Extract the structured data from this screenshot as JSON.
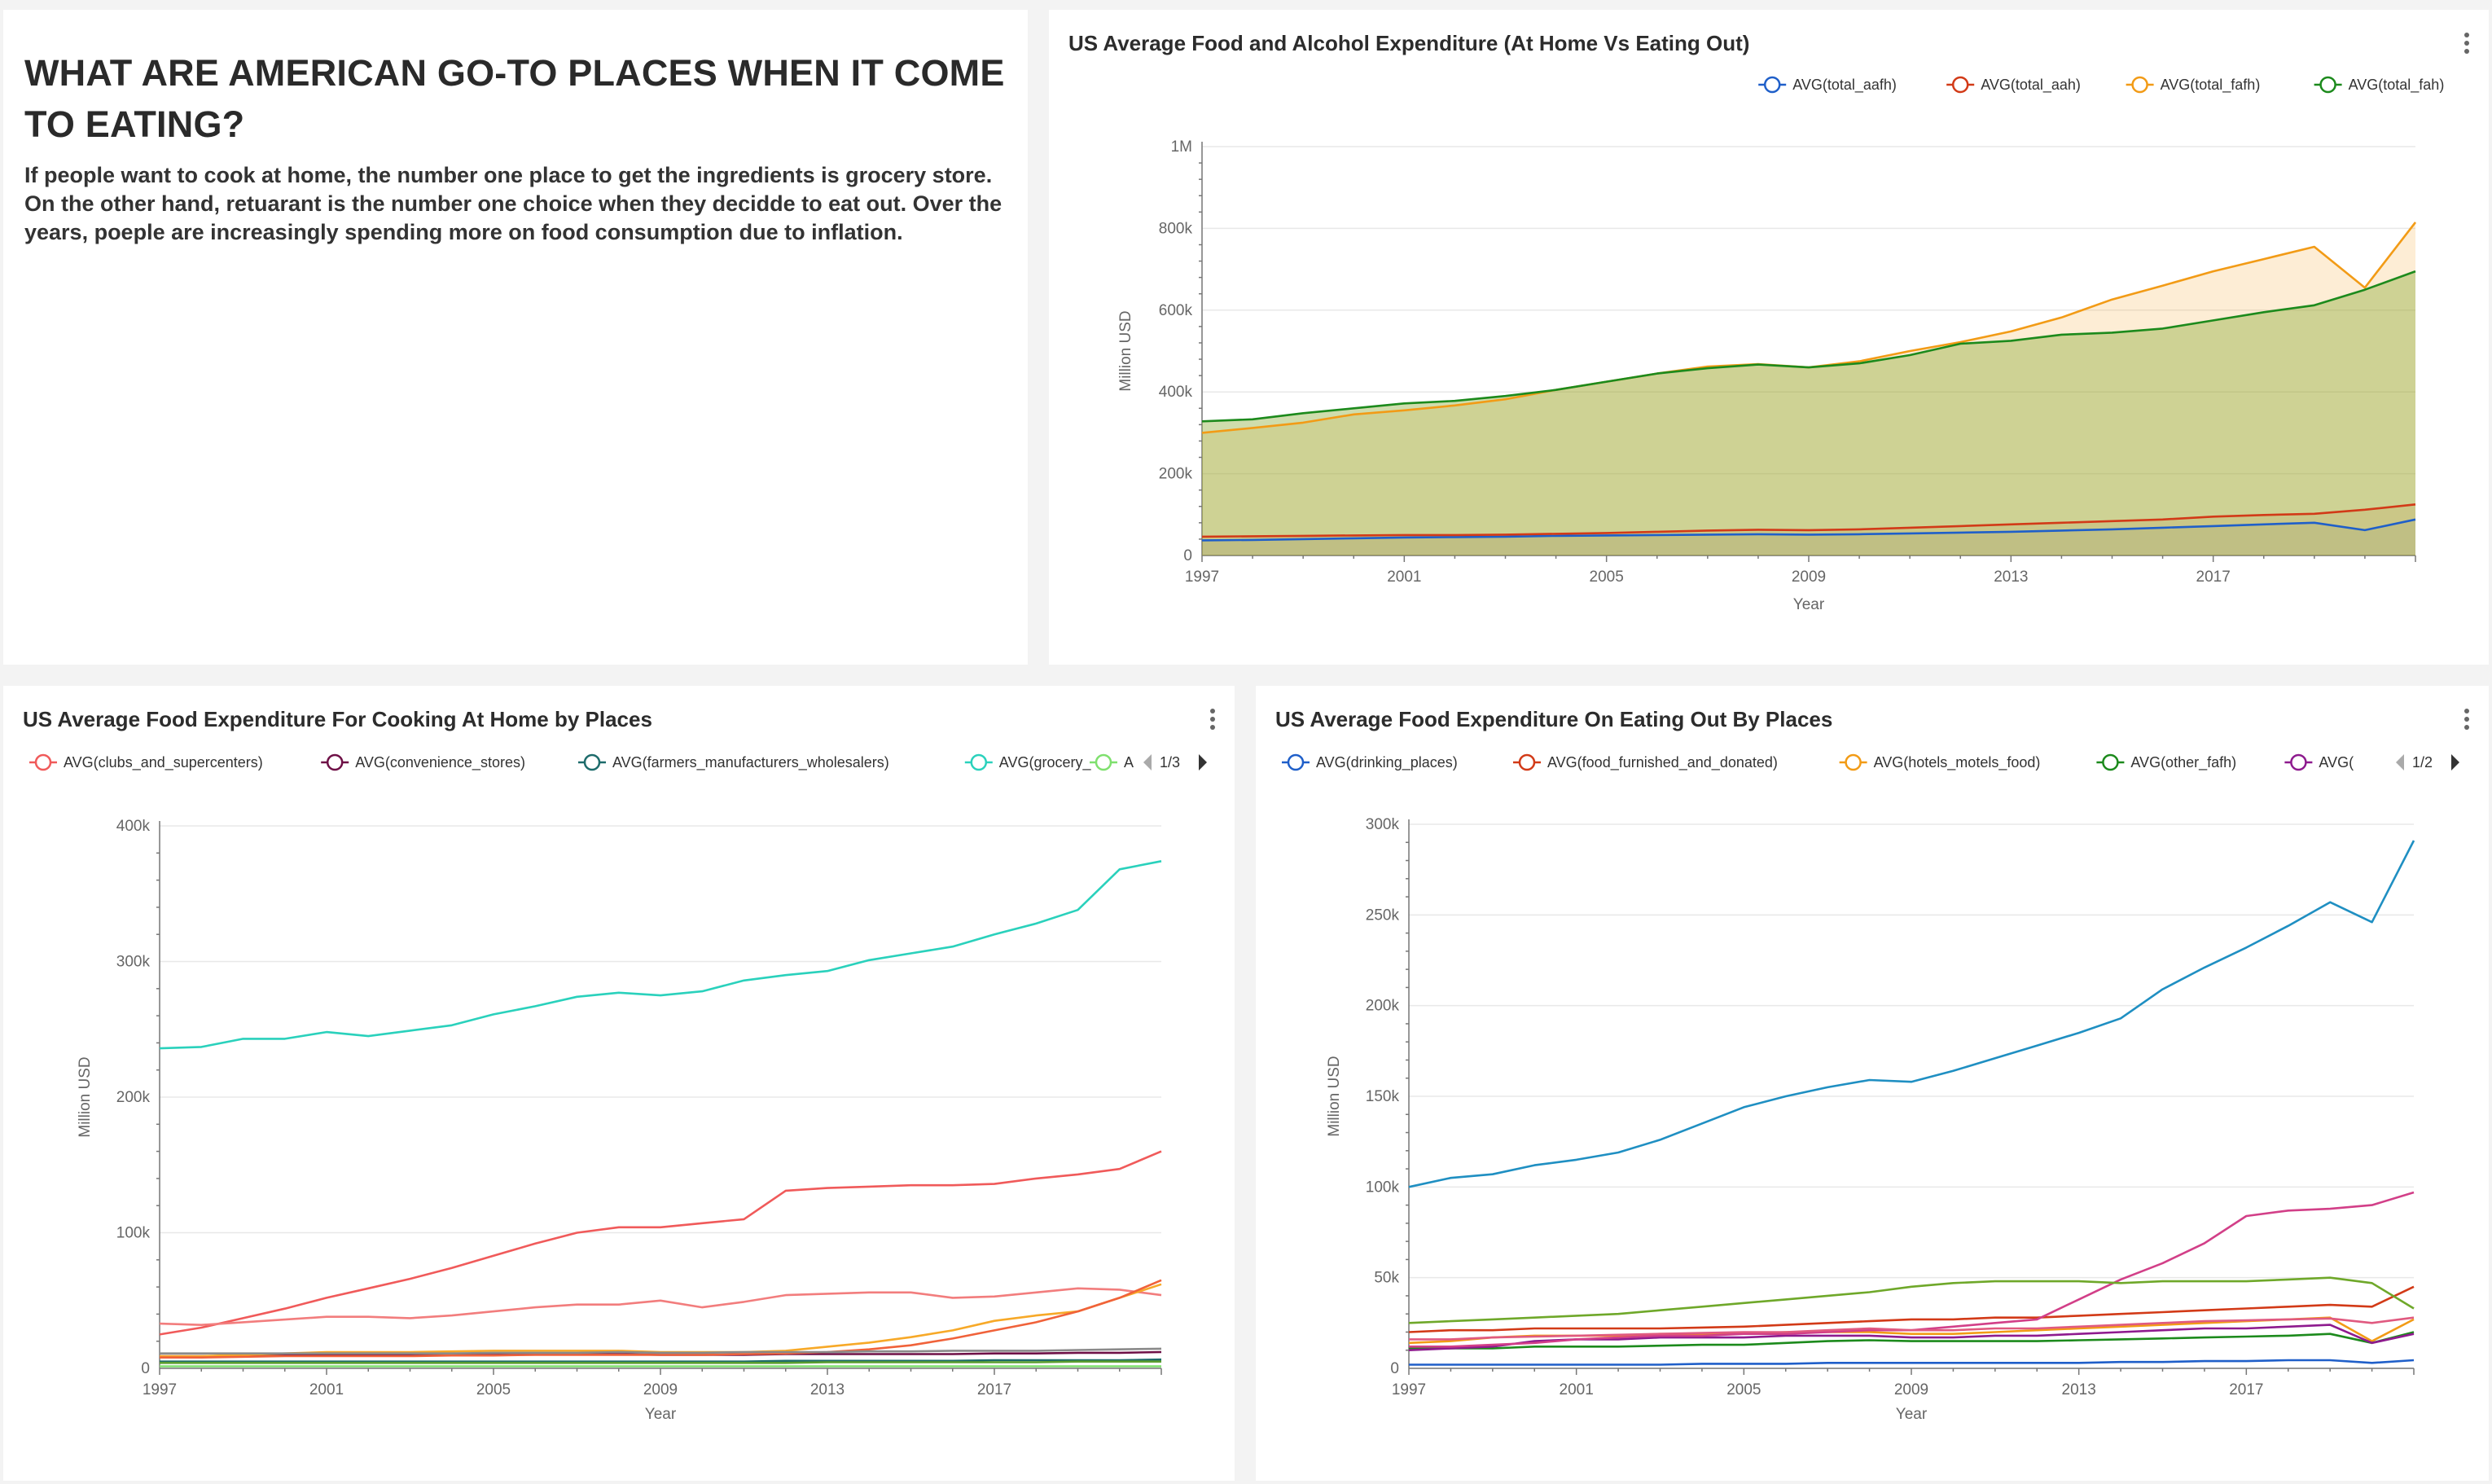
{
  "text_panel": {
    "title": "WHAT ARE AMERICAN GO-TO PLACES WHEN IT COME TO EATING?",
    "body": "If people want to cook at home, the number one place to get the ingredients is grocery store. On the other hand, retuarant is the number one choice when they decidde to eat out. Over the years, poeple are increasingly spending more on food consumption due to inflation."
  },
  "colors": {
    "page_background": "#f3f3f3",
    "card_background": "#ffffff",
    "grid": "#e6e6e6"
  },
  "chart_data": [
    {
      "type": "area",
      "title": "US Average Food and Alcohol Expenditure (At Home Vs Eating Out)",
      "xlabel": "Year",
      "ylabel": "Million USD",
      "xlim": [
        1997,
        2021
      ],
      "ylim": [
        0,
        1000000
      ],
      "x_ticks": [
        "1997",
        "2001",
        "2005",
        "2009",
        "2013",
        "2017"
      ],
      "y_ticks": [
        "0",
        "200k",
        "400k",
        "600k",
        "800k",
        "1M"
      ],
      "grid": true,
      "stacked": false,
      "legend_position": "top-right",
      "x": [
        1997,
        1998,
        1999,
        2000,
        2001,
        2002,
        2003,
        2004,
        2005,
        2006,
        2007,
        2008,
        2009,
        2010,
        2011,
        2012,
        2013,
        2014,
        2015,
        2016,
        2017,
        2018,
        2019,
        2020,
        2021
      ],
      "series": [
        {
          "name": "AVG(total_aafh)",
          "color": "#1f5fc9",
          "fill": "rgba(31,95,201,0.12)",
          "values": [
            37000,
            38000,
            40000,
            42000,
            44000,
            45000,
            46000,
            48000,
            49000,
            50000,
            51000,
            52000,
            51000,
            52000,
            54000,
            56000,
            58000,
            61000,
            64000,
            68000,
            72000,
            76000,
            80000,
            62000,
            88000
          ]
        },
        {
          "name": "AVG(total_aah)",
          "color": "#d23a17",
          "fill": "rgba(210,58,23,0.12)",
          "values": [
            46000,
            47000,
            48000,
            49000,
            50000,
            50000,
            51000,
            53000,
            55000,
            58000,
            61000,
            63000,
            62000,
            64000,
            68000,
            72000,
            76000,
            80000,
            84000,
            88000,
            95000,
            99000,
            102000,
            112000,
            125000
          ]
        },
        {
          "name": "AVG(total_fafh)",
          "color": "#f29b16",
          "fill": "rgba(242,155,22,0.18)",
          "values": [
            300000,
            312000,
            325000,
            345000,
            355000,
            367000,
            382000,
            405000,
            425000,
            445000,
            462000,
            468000,
            460000,
            475000,
            500000,
            522000,
            548000,
            582000,
            626000,
            660000,
            695000,
            725000,
            755000,
            655000,
            815000
          ]
        },
        {
          "name": "AVG(total_fah)",
          "color": "#1c8a1c",
          "fill": "rgba(140,175,60,0.42)",
          "values": [
            328000,
            333000,
            348000,
            360000,
            372000,
            378000,
            390000,
            405000,
            425000,
            445000,
            458000,
            467000,
            460000,
            470000,
            490000,
            518000,
            525000,
            540000,
            545000,
            555000,
            575000,
            595000,
            612000,
            650000,
            695000
          ]
        }
      ]
    },
    {
      "type": "line",
      "title": "US Average Food Expenditure For Cooking At Home by Places",
      "xlabel": "Year",
      "ylabel": "Million USD",
      "xlim": [
        1997,
        2021
      ],
      "ylim": [
        0,
        400000
      ],
      "x_ticks": [
        "1997",
        "2001",
        "2005",
        "2009",
        "2013",
        "2017"
      ],
      "y_ticks": [
        "0",
        "100k",
        "200k",
        "300k",
        "400k"
      ],
      "grid": true,
      "legend_position": "top",
      "legend_page": "1/3",
      "legend_cut_label": "A",
      "x": [
        1997,
        1998,
        1999,
        2000,
        2001,
        2002,
        2003,
        2004,
        2005,
        2006,
        2007,
        2008,
        2009,
        2010,
        2011,
        2012,
        2013,
        2014,
        2015,
        2016,
        2017,
        2018,
        2019,
        2020,
        2021
      ],
      "series": [
        {
          "name": "AVG(clubs_and_supercenters)",
          "color": "#f05a5a",
          "values": [
            25000,
            30000,
            37000,
            44000,
            52000,
            59000,
            66000,
            74000,
            83000,
            92000,
            100000,
            104000,
            104000,
            107000,
            110000,
            131000,
            133000,
            134000,
            135000,
            135000,
            136000,
            140000,
            143000,
            147000,
            160000
          ]
        },
        {
          "name": "AVG(convenience_stores)",
          "color": "#6e1046",
          "values": [
            9000,
            9000,
            9500,
            10000,
            10000,
            10000,
            10000,
            10000,
            10000,
            10500,
            10500,
            10500,
            10000,
            10000,
            10000,
            10500,
            10500,
            10500,
            10500,
            10500,
            11000,
            11000,
            11500,
            11500,
            12000
          ]
        },
        {
          "name": "AVG(farmers_manufacturers_wholesalers)",
          "color": "#1d6b6b",
          "values": [
            5000,
            5000,
            5000,
            5000,
            5000,
            5000,
            5000,
            5000,
            5000,
            5000,
            5000,
            5000,
            5000,
            5000,
            5000,
            5500,
            5500,
            5500,
            5500,
            5500,
            6000,
            6000,
            6000,
            6000,
            6500
          ]
        },
        {
          "name": "AVG(grocery_stores)",
          "color": "#2ad1bc",
          "values": [
            236000,
            237000,
            243000,
            243000,
            248000,
            245000,
            249000,
            253000,
            261000,
            267000,
            274000,
            277000,
            275000,
            278000,
            286000,
            290000,
            293000,
            301000,
            306000,
            311000,
            320000,
            328000,
            338000,
            368000,
            374000
          ]
        },
        {
          "name": "",
          "color": "#7fe06e",
          "values": [
            1500,
            1500,
            1500,
            1500,
            1500,
            1500,
            1500,
            1500,
            1500,
            1500,
            1500,
            1500,
            1500,
            1500,
            1500,
            1500,
            1500,
            1500,
            1500,
            1500,
            1500,
            1500,
            1500,
            1500,
            1500
          ]
        },
        {
          "name": "",
          "color": "#f27d7d",
          "values": [
            33000,
            32000,
            34000,
            36000,
            38000,
            38000,
            37000,
            39000,
            42000,
            45000,
            47000,
            47000,
            50000,
            45000,
            49000,
            54000,
            55000,
            56000,
            56000,
            52000,
            53000,
            56000,
            59000,
            58000,
            54000
          ]
        },
        {
          "name": "",
          "color": "#f7a928",
          "values": [
            9000,
            9000,
            10000,
            11000,
            12000,
            12000,
            12000,
            12500,
            13000,
            13000,
            13000,
            13000,
            12000,
            12000,
            12000,
            13000,
            16000,
            19000,
            23000,
            28000,
            35000,
            39000,
            42000,
            52000,
            62000
          ]
        },
        {
          "name": "",
          "color": "#f0623a",
          "values": [
            8000,
            8000,
            8500,
            9000,
            9000,
            9000,
            9000,
            9500,
            9500,
            10000,
            10000,
            10000,
            10000,
            10000,
            10500,
            11000,
            12000,
            14000,
            17000,
            22000,
            28000,
            34000,
            42000,
            52000,
            65000
          ]
        },
        {
          "name": "",
          "color": "#5b9e2f",
          "values": [
            4000,
            4000,
            4000,
            4000,
            4000,
            4000,
            4000,
            4000,
            4000,
            4000,
            4000,
            4000,
            4000,
            4000,
            4000,
            4000,
            4500,
            4500,
            4500,
            4500,
            4500,
            4500,
            5000,
            5000,
            5000
          ]
        },
        {
          "name": "",
          "color": "#8a8a8a",
          "values": [
            11000,
            11000,
            11000,
            11000,
            11000,
            11000,
            11000,
            11000,
            11500,
            11500,
            11500,
            12000,
            11500,
            11500,
            12000,
            12000,
            12000,
            12500,
            12500,
            13000,
            13000,
            13000,
            13500,
            14000,
            14500
          ]
        }
      ]
    },
    {
      "type": "line",
      "title": "US Average Food Expenditure On Eating Out By Places",
      "xlabel": "Year",
      "ylabel": "Million USD",
      "xlim": [
        1997,
        2021
      ],
      "ylim": [
        0,
        300000
      ],
      "x_ticks": [
        "1997",
        "2001",
        "2005",
        "2009",
        "2013",
        "2017"
      ],
      "y_ticks": [
        "0",
        "50k",
        "100k",
        "150k",
        "200k",
        "250k",
        "300k"
      ],
      "grid": true,
      "legend_position": "top",
      "legend_page": "1/2",
      "x": [
        1997,
        1998,
        1999,
        2000,
        2001,
        2002,
        2003,
        2004,
        2005,
        2006,
        2007,
        2008,
        2009,
        2010,
        2011,
        2012,
        2013,
        2014,
        2015,
        2016,
        2017,
        2018,
        2019,
        2020,
        2021
      ],
      "series": [
        {
          "name": "AVG(drinking_places)",
          "color": "#1f5fc9",
          "values": [
            2000,
            2000,
            2000,
            2000,
            2000,
            2000,
            2000,
            2500,
            2500,
            2500,
            3000,
            3000,
            3000,
            3000,
            3000,
            3000,
            3000,
            3500,
            3500,
            4000,
            4000,
            4500,
            4500,
            3000,
            4500
          ]
        },
        {
          "name": "AVG(food_furnished_and_donated)",
          "color": "#d23a17",
          "values": [
            20000,
            21000,
            21000,
            22000,
            22000,
            22000,
            22000,
            22500,
            23000,
            24000,
            25000,
            26000,
            27000,
            27000,
            28000,
            28000,
            29000,
            30000,
            31000,
            32000,
            33000,
            34000,
            35000,
            34000,
            45000
          ]
        },
        {
          "name": "AVG(hotels_motels_food)",
          "color": "#f29b16",
          "values": [
            14000,
            15000,
            17000,
            18000,
            18000,
            18000,
            19000,
            19000,
            19000,
            20000,
            20000,
            20000,
            19000,
            19000,
            20000,
            21000,
            22000,
            23000,
            24000,
            25000,
            26000,
            27000,
            28000,
            15000,
            27000
          ]
        },
        {
          "name": "AVG(other_fafh)",
          "color": "#1c8a1c",
          "values": [
            11000,
            11000,
            11000,
            12000,
            12000,
            12000,
            12500,
            13000,
            13000,
            14000,
            15000,
            15500,
            15000,
            15000,
            15000,
            15000,
            15500,
            16000,
            16500,
            17000,
            17500,
            18000,
            19000,
            14000,
            20000
          ]
        },
        {
          "name": "AVG(recreational_places)",
          "color": "#8e1a8e",
          "values": [
            10000,
            11000,
            12000,
            15000,
            16000,
            16000,
            17000,
            17000,
            17000,
            18000,
            18000,
            18000,
            17000,
            17000,
            18000,
            18000,
            19000,
            20000,
            21000,
            22000,
            22000,
            23000,
            24000,
            14000,
            19000
          ]
        },
        {
          "name": "",
          "color": "#1f8fc2",
          "values": [
            100000,
            105000,
            107000,
            112000,
            115000,
            119000,
            126000,
            135000,
            144000,
            150000,
            155000,
            159000,
            158000,
            164000,
            171000,
            178000,
            185000,
            193000,
            209000,
            221000,
            232000,
            244000,
            257000,
            246000,
            291000
          ]
        },
        {
          "name": "",
          "color": "#d23f88",
          "values": [
            12000,
            12000,
            13000,
            14000,
            16000,
            17000,
            18000,
            18000,
            19000,
            19000,
            20000,
            21000,
            21000,
            23000,
            25000,
            27000,
            38000,
            49000,
            58000,
            69000,
            84000,
            87000,
            88000,
            90000,
            97000
          ]
        },
        {
          "name": "",
          "color": "#6fa82a",
          "values": [
            25000,
            26000,
            27000,
            28000,
            29000,
            30000,
            32000,
            34000,
            36000,
            38000,
            40000,
            42000,
            45000,
            47000,
            48000,
            48000,
            48000,
            47000,
            48000,
            48000,
            48000,
            49000,
            50000,
            47000,
            33000
          ]
        },
        {
          "name": "",
          "color": "#e05a80",
          "values": [
            16000,
            16000,
            17000,
            17500,
            18000,
            18500,
            19000,
            19500,
            20000,
            20000,
            21000,
            22000,
            21000,
            21000,
            22000,
            22000,
            23000,
            24000,
            25000,
            26000,
            26500,
            27000,
            27500,
            25000,
            28000
          ]
        }
      ]
    }
  ]
}
